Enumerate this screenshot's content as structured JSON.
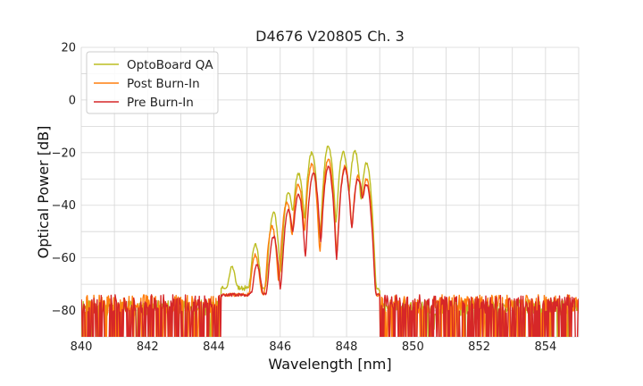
{
  "chart_data": {
    "type": "line",
    "title": "D4676 V20805 Ch. 3",
    "xlabel": "Wavelength [nm]",
    "ylabel": "Optical Power [dB]",
    "xlim": [
      840,
      855
    ],
    "ylim": [
      -90,
      20
    ],
    "xticks": [
      840,
      842,
      844,
      846,
      848,
      850,
      852,
      854
    ],
    "yticks": [
      20,
      0,
      -20,
      -40,
      -60,
      -80
    ],
    "xtick_labels": [
      "840",
      "842",
      "844",
      "846",
      "848",
      "850",
      "852",
      "854"
    ],
    "ytick_labels": [
      "20",
      "0",
      "−20",
      "−40",
      "−60",
      "−80"
    ],
    "grid": true,
    "minor_grid": true,
    "legend_position": "top-left",
    "noise_floor": {
      "optoboard_qa": -76,
      "burn_in": -80,
      "spectrum_edges_nm": [
        844.2,
        849.0
      ]
    },
    "series": [
      {
        "name": "OptoBoard QA",
        "color": "#bcbd22",
        "peaks": [
          {
            "x": 844.55,
            "y": -64
          },
          {
            "x": 845.25,
            "y": -55
          },
          {
            "x": 845.8,
            "y": -43
          },
          {
            "x": 846.25,
            "y": -35
          },
          {
            "x": 846.55,
            "y": -28
          },
          {
            "x": 846.95,
            "y": -20
          },
          {
            "x": 847.45,
            "y": -17.5
          },
          {
            "x": 847.9,
            "y": -20
          },
          {
            "x": 848.25,
            "y": -19.5
          },
          {
            "x": 848.6,
            "y": -24
          }
        ]
      },
      {
        "name": "Post Burn-In",
        "color": "#ff7f0e",
        "peaks": [
          {
            "x": 845.25,
            "y": -59
          },
          {
            "x": 845.75,
            "y": -48
          },
          {
            "x": 846.2,
            "y": -39
          },
          {
            "x": 846.55,
            "y": -32
          },
          {
            "x": 846.95,
            "y": -24.5
          },
          {
            "x": 847.45,
            "y": -22.5
          },
          {
            "x": 847.95,
            "y": -25
          },
          {
            "x": 848.35,
            "y": -29
          },
          {
            "x": 848.6,
            "y": -30
          }
        ]
      },
      {
        "name": "Pre Burn-In",
        "color": "#d62728",
        "peaks": [
          {
            "x": 845.3,
            "y": -63
          },
          {
            "x": 845.8,
            "y": -52
          },
          {
            "x": 846.25,
            "y": -42
          },
          {
            "x": 846.55,
            "y": -36
          },
          {
            "x": 847.0,
            "y": -27.5
          },
          {
            "x": 847.45,
            "y": -25.5
          },
          {
            "x": 847.95,
            "y": -26
          },
          {
            "x": 848.35,
            "y": -30
          },
          {
            "x": 848.6,
            "y": -32
          }
        ]
      }
    ]
  }
}
